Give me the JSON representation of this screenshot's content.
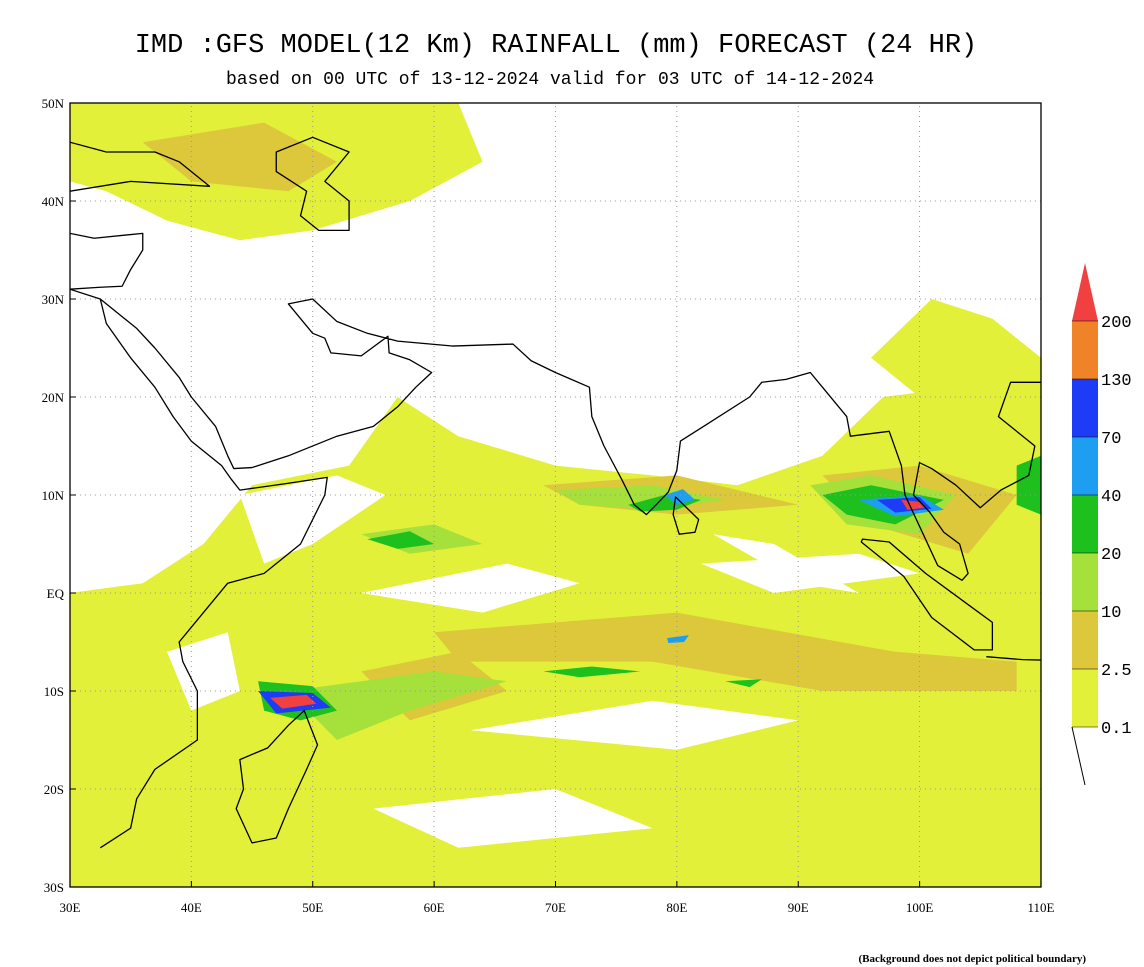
{
  "title": "IMD :GFS MODEL(12 Km) RAINFALL (mm) FORECAST (24 HR)",
  "subtitle": "based on 00 UTC of 13-12-2024 valid for 03 UTC of 14-12-2024",
  "map": {
    "lon_labels": [
      "30E",
      "40E",
      "50E",
      "60E",
      "70E",
      "80E",
      "90E",
      "100E",
      "110E"
    ],
    "lat_labels": [
      "50N",
      "40N",
      "30N",
      "20N",
      "10N",
      "EQ",
      "10S",
      "20S",
      "30S"
    ]
  },
  "legend": {
    "levels": [
      "0.1",
      "2.5",
      "10",
      "20",
      "40",
      "70",
      "130",
      "200"
    ],
    "colors": [
      "#e2f03a",
      "#dcc83a",
      "#a6e03a",
      "#1ec01e",
      "#1e9ef0",
      "#1e3cf5",
      "#f08228"
    ],
    "above_color": "#f04040"
  },
  "footnote": "(Background does not depict political boundary)"
}
